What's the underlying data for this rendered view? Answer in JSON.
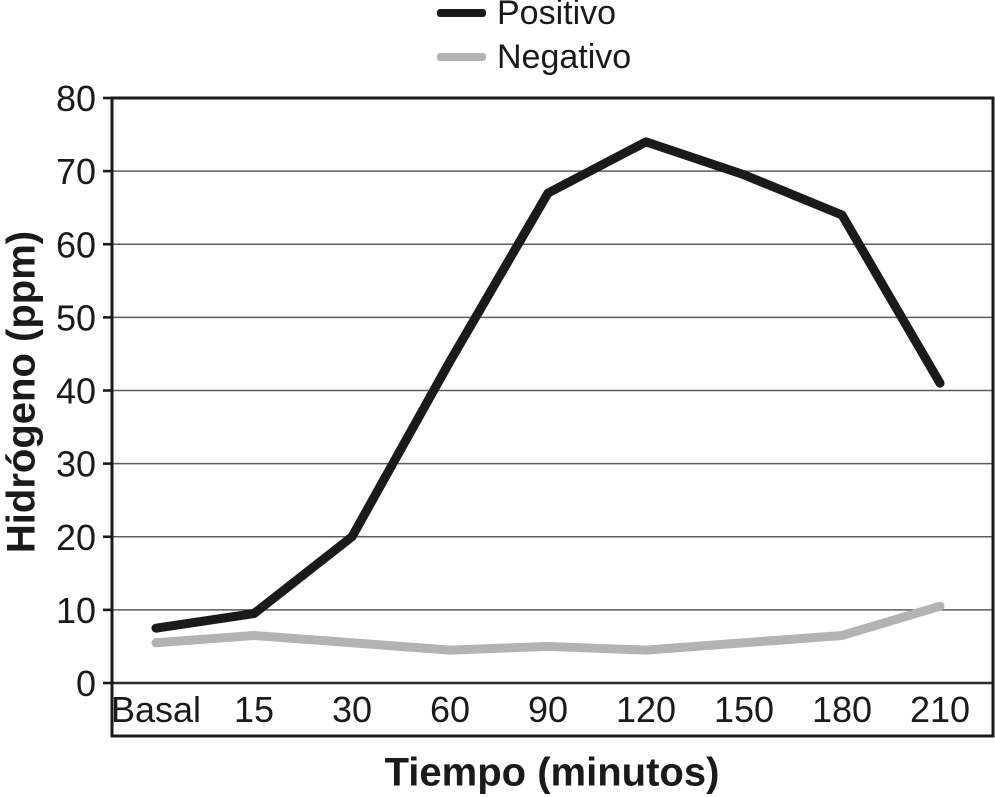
{
  "chart_data": {
    "type": "line",
    "categories": [
      "Basal",
      "15",
      "30",
      "60",
      "90",
      "120",
      "150",
      "180",
      "210"
    ],
    "series": [
      {
        "name": "Positivo",
        "color": "#1a1a1a",
        "values": [
          7.5,
          9.5,
          20,
          44,
          67,
          74,
          69.5,
          64,
          41
        ]
      },
      {
        "name": "Negativo",
        "color": "#b3b3b3",
        "values": [
          5.5,
          6.5,
          5.5,
          4.5,
          5,
          4.5,
          5.5,
          6.5,
          10.5
        ]
      }
    ],
    "xlabel": "Tiempo (minutos)",
    "ylabel": "Hidrógeno (ppm)",
    "ylim": [
      0,
      80
    ],
    "yticks": [
      0,
      10,
      20,
      30,
      40,
      50,
      60,
      70,
      80
    ],
    "grid": "horizontal-only",
    "legend_position": "top-center",
    "frame_color": "#1a1a1a",
    "gridline_color": "#5c5c5c"
  }
}
